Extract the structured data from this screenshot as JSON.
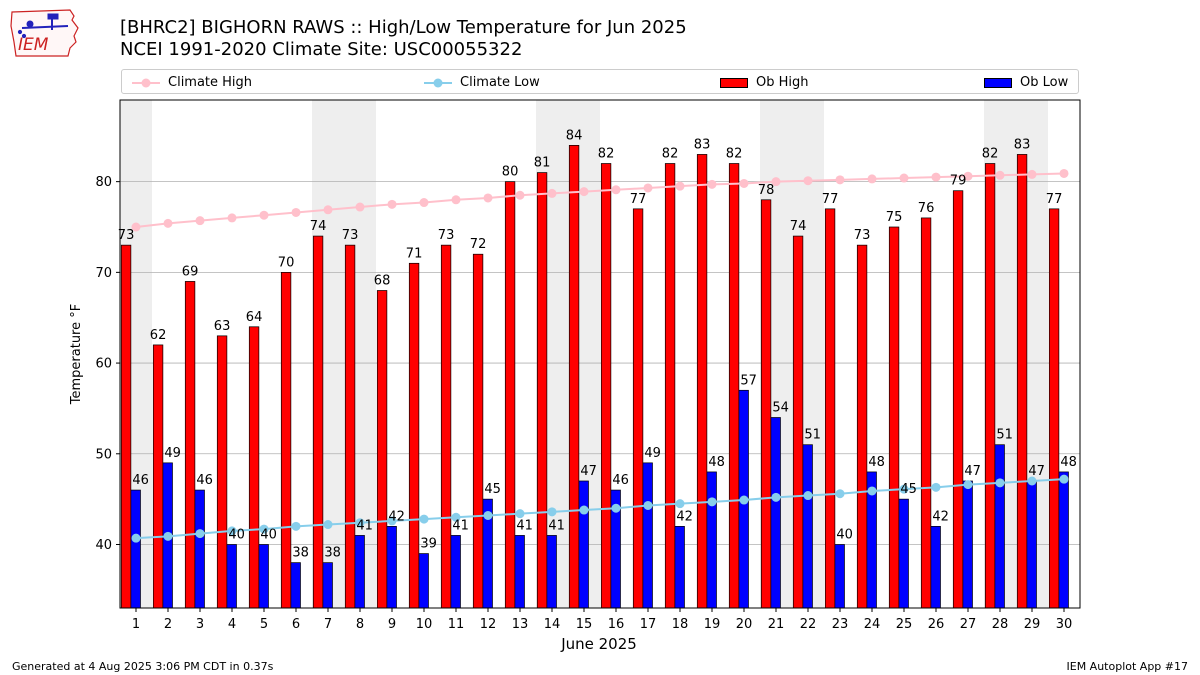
{
  "logo": {
    "text": "IEM"
  },
  "title": {
    "line1": "[BHRC2] BIGHORN RAWS :: High/Low Temperature for Jun 2025",
    "line2": "NCEI 1991-2020 Climate Site: USC00055322"
  },
  "legend": {
    "climate_high": "Climate High",
    "climate_low": "Climate Low",
    "ob_high": "Ob High",
    "ob_low": "Ob Low"
  },
  "colors": {
    "ob_high": "#ff0000",
    "ob_low": "#0000ff",
    "climate_high": "#ffc0cb",
    "climate_low": "#87ceeb",
    "weekend_band": "#eeeeee",
    "grid": "#b0b0b0"
  },
  "chart_data": {
    "type": "bar",
    "xlabel": "June 2025",
    "ylabel": "Temperature °F",
    "ylim": [
      33,
      89
    ],
    "yticks": [
      40,
      50,
      60,
      70,
      80
    ],
    "grid": true,
    "legend_position": "top",
    "categories": [
      "1",
      "2",
      "3",
      "4",
      "5",
      "6",
      "7",
      "8",
      "9",
      "10",
      "11",
      "12",
      "13",
      "14",
      "15",
      "16",
      "17",
      "18",
      "19",
      "20",
      "21",
      "22",
      "23",
      "24",
      "25",
      "26",
      "27",
      "28",
      "29",
      "30"
    ],
    "weekend_days": [
      1,
      7,
      8,
      14,
      15,
      21,
      22,
      28,
      29
    ],
    "series": [
      {
        "name": "Ob High",
        "kind": "bar",
        "values": [
          73,
          62,
          69,
          63,
          64,
          70,
          74,
          73,
          68,
          71,
          73,
          72,
          80,
          81,
          84,
          82,
          77,
          82,
          83,
          82,
          78,
          74,
          77,
          73,
          75,
          76,
          79,
          82,
          83,
          77
        ]
      },
      {
        "name": "Ob Low",
        "kind": "bar",
        "values": [
          46,
          49,
          46,
          40,
          40,
          38,
          38,
          41,
          42,
          39,
          41,
          45,
          41,
          41,
          47,
          46,
          49,
          42,
          48,
          57,
          54,
          51,
          40,
          48,
          45,
          42,
          47,
          51,
          47,
          48
        ]
      },
      {
        "name": "Climate High",
        "kind": "line",
        "values": [
          75.0,
          75.4,
          75.7,
          76.0,
          76.3,
          76.6,
          76.9,
          77.2,
          77.5,
          77.7,
          78.0,
          78.2,
          78.5,
          78.7,
          78.9,
          79.1,
          79.3,
          79.5,
          79.7,
          79.8,
          80.0,
          80.1,
          80.2,
          80.3,
          80.4,
          80.5,
          80.6,
          80.7,
          80.8,
          80.9
        ]
      },
      {
        "name": "Climate Low",
        "kind": "line",
        "values": [
          40.7,
          40.9,
          41.2,
          41.5,
          41.7,
          42.0,
          42.2,
          42.4,
          42.6,
          42.8,
          43.0,
          43.2,
          43.4,
          43.6,
          43.8,
          44.0,
          44.3,
          44.5,
          44.7,
          44.9,
          45.2,
          45.4,
          45.6,
          45.9,
          46.1,
          46.3,
          46.6,
          46.8,
          47.0,
          47.2
        ]
      }
    ]
  },
  "footer": {
    "left": "Generated at 4 Aug 2025 3:06 PM CDT in 0.37s",
    "right": "IEM Autoplot App #17"
  }
}
